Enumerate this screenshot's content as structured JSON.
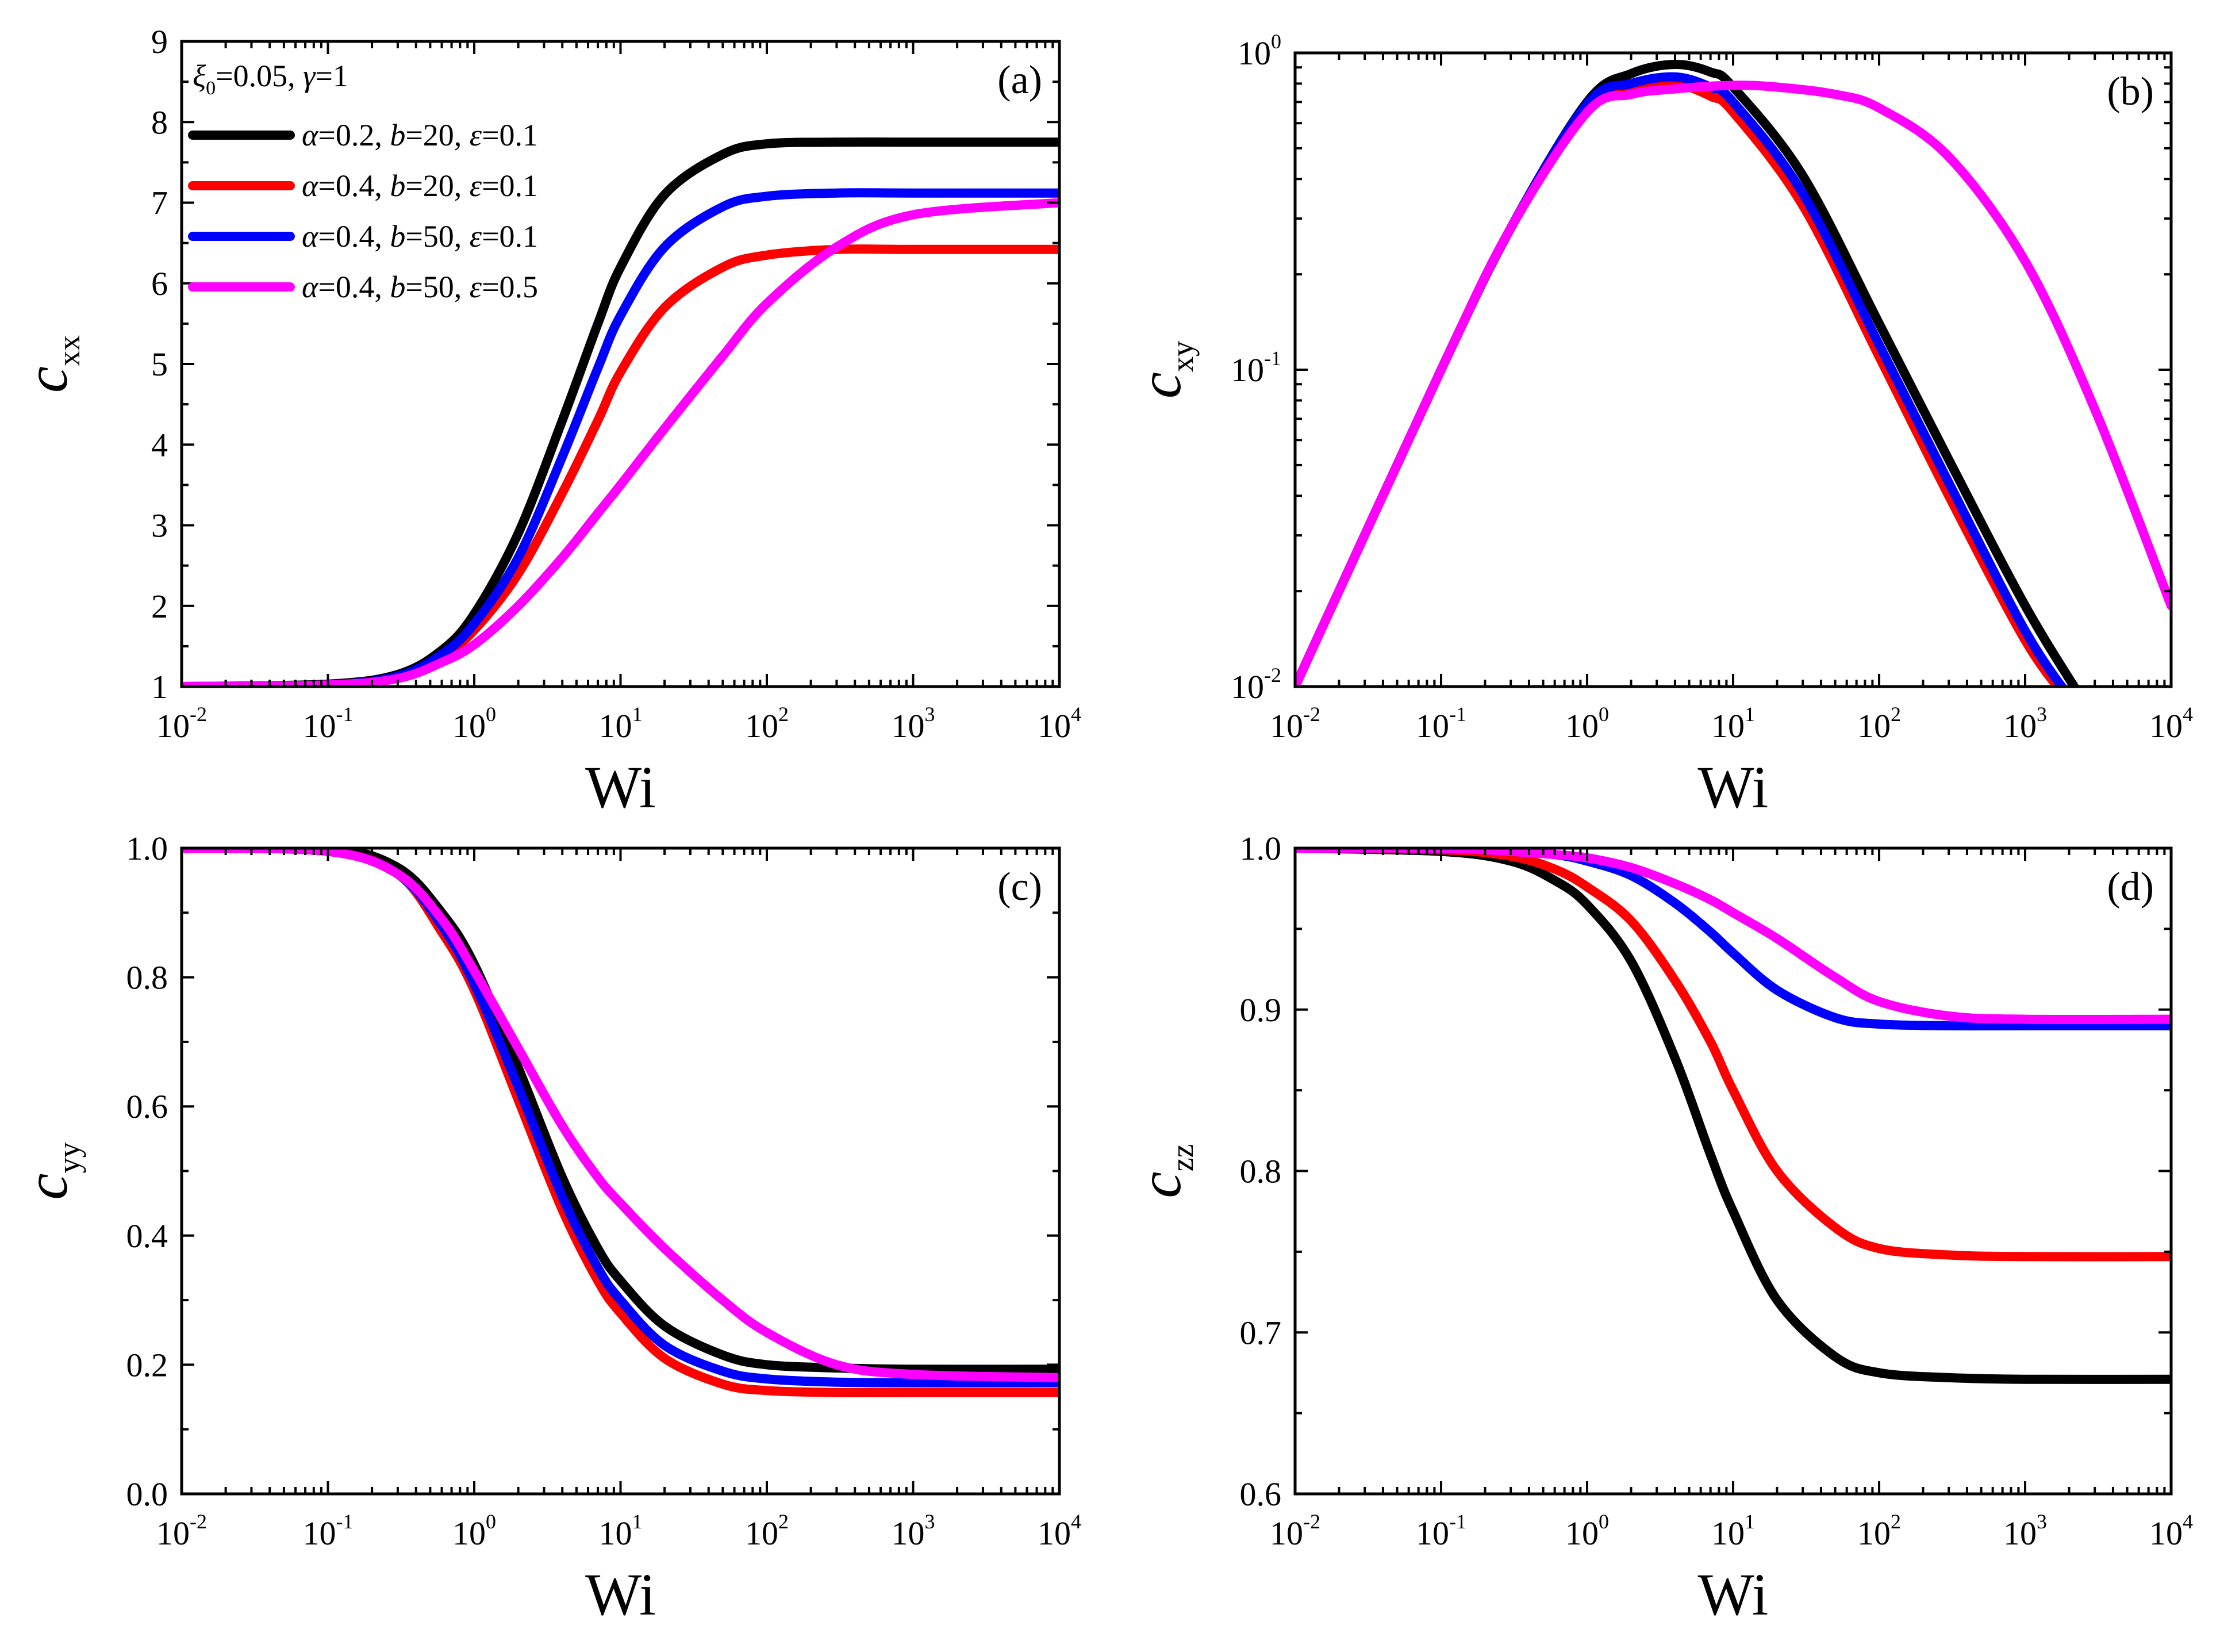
{
  "figure": {
    "legend_header": "ξ₀=0.05, γ=1",
    "legend_header_parts": {
      "xi": "ξ",
      "xi_sub": "0",
      "xi_val": "=0.05, ",
      "gamma": "γ",
      "gamma_val": "=1"
    }
  },
  "chart_data": [
    {
      "id": "a",
      "type": "line",
      "panel_label": "(a)",
      "xlabel": "Wi",
      "ylabel": "c",
      "ylabel_sub": "xx",
      "xscale": "log",
      "yscale": "linear",
      "xlim": [
        0.01,
        10000
      ],
      "ylim": [
        1,
        9
      ],
      "x_ticks": [
        {
          "base": "10",
          "exp": "-2"
        },
        {
          "base": "10",
          "exp": "-1"
        },
        {
          "base": "10",
          "exp": "0"
        },
        {
          "base": "10",
          "exp": "1"
        },
        {
          "base": "10",
          "exp": "2"
        },
        {
          "base": "10",
          "exp": "3"
        },
        {
          "base": "10",
          "exp": "4"
        }
      ],
      "y_ticks": [
        "1",
        "2",
        "3",
        "4",
        "5",
        "6",
        "7",
        "8",
        "9"
      ],
      "legend": [
        {
          "name": "α=0.2, b=20, ε=0.1",
          "parts": [
            "α",
            "=0.2, ",
            "b",
            "=20, ",
            "ε",
            "=0.1"
          ],
          "color": "#000000"
        },
        {
          "name": "α=0.4, b=20, ε=0.1",
          "parts": [
            "α",
            "=0.4, ",
            "b",
            "=20, ",
            "ε",
            "=0.1"
          ],
          "color": "#ff0000"
        },
        {
          "name": "α=0.4, b=50, ε=0.1",
          "parts": [
            "α",
            "=0.4, ",
            "b",
            "=50, ",
            "ε",
            "=0.1"
          ],
          "color": "#0000ff"
        },
        {
          "name": "α=0.4, b=50, ε=0.5",
          "parts": [
            "α",
            "=0.4, ",
            "b",
            "=50, ",
            "ε",
            "=0.5"
          ],
          "color": "#ff00ff"
        }
      ],
      "series": [
        {
          "name": "α=0.2, b=20, ε=0.1",
          "color": "#000000",
          "x": [
            0.01,
            0.1,
            0.3,
            0.6,
            1,
            2,
            4,
            7,
            10,
            20,
            50,
            100,
            300,
            1000,
            10000
          ],
          "y": [
            1.0,
            1.03,
            1.15,
            1.45,
            1.9,
            2.9,
            4.3,
            5.5,
            6.2,
            7.1,
            7.6,
            7.73,
            7.75,
            7.75,
            7.75
          ]
        },
        {
          "name": "α=0.4, b=20, ε=0.1",
          "color": "#ff0000",
          "x": [
            0.01,
            0.1,
            0.3,
            0.6,
            1,
            2,
            4,
            7,
            10,
            20,
            50,
            100,
            300,
            1000,
            10000
          ],
          "y": [
            1.0,
            1.02,
            1.12,
            1.37,
            1.7,
            2.4,
            3.4,
            4.3,
            4.9,
            5.7,
            6.2,
            6.35,
            6.42,
            6.42,
            6.42
          ]
        },
        {
          "name": "α=0.4, b=50, ε=0.1",
          "color": "#0000ff",
          "x": [
            0.01,
            0.1,
            0.3,
            0.6,
            1,
            2,
            4,
            7,
            10,
            20,
            50,
            100,
            300,
            1000,
            10000
          ],
          "y": [
            1.0,
            1.02,
            1.13,
            1.4,
            1.78,
            2.6,
            3.85,
            4.95,
            5.6,
            6.45,
            6.95,
            7.08,
            7.12,
            7.12,
            7.12
          ]
        },
        {
          "name": "α=0.4, b=50, ε=0.5",
          "color": "#ff00ff",
          "x": [
            0.01,
            0.1,
            0.3,
            0.6,
            1,
            2,
            4,
            7,
            10,
            20,
            50,
            100,
            300,
            1000,
            10000
          ],
          "y": [
            1.0,
            1.02,
            1.1,
            1.3,
            1.52,
            2.0,
            2.6,
            3.15,
            3.5,
            4.2,
            5.1,
            5.75,
            6.45,
            6.85,
            7.0
          ]
        }
      ]
    },
    {
      "id": "b",
      "type": "line",
      "panel_label": "(b)",
      "xlabel": "Wi",
      "ylabel": "c",
      "ylabel_sub": "xy",
      "xscale": "log",
      "yscale": "log",
      "xlim": [
        0.01,
        10000
      ],
      "ylim": [
        0.01,
        1
      ],
      "x_ticks": [
        {
          "base": "10",
          "exp": "-2"
        },
        {
          "base": "10",
          "exp": "-1"
        },
        {
          "base": "10",
          "exp": "0"
        },
        {
          "base": "10",
          "exp": "1"
        },
        {
          "base": "10",
          "exp": "2"
        },
        {
          "base": "10",
          "exp": "3"
        },
        {
          "base": "10",
          "exp": "4"
        }
      ],
      "y_ticks": [
        {
          "base": "10",
          "exp": "-2"
        },
        {
          "base": "10",
          "exp": "-1"
        },
        {
          "base": "10",
          "exp": "0"
        }
      ],
      "series": [
        {
          "name": "α=0.2, b=20, ε=0.1",
          "color": "#000000",
          "x": [
            0.01,
            0.1,
            0.3,
            1,
            2,
            4,
            7,
            10,
            30,
            100,
            300,
            1000,
            2500
          ],
          "y": [
            0.01,
            0.1,
            0.28,
            0.7,
            0.86,
            0.92,
            0.87,
            0.78,
            0.41,
            0.14,
            0.052,
            0.018,
            0.009
          ]
        },
        {
          "name": "α=0.4, b=20, ε=0.1",
          "color": "#ff0000",
          "x": [
            0.01,
            0.1,
            0.3,
            1,
            2,
            4,
            7,
            10,
            30,
            100,
            300,
            1000,
            2000
          ],
          "y": [
            0.01,
            0.1,
            0.28,
            0.68,
            0.79,
            0.8,
            0.73,
            0.65,
            0.33,
            0.11,
            0.04,
            0.014,
            0.009
          ]
        },
        {
          "name": "α=0.4, b=50, ε=0.1",
          "color": "#0000ff",
          "x": [
            0.01,
            0.1,
            0.3,
            1,
            2,
            4,
            7,
            10,
            30,
            100,
            300,
            1000,
            2100
          ],
          "y": [
            0.01,
            0.1,
            0.28,
            0.69,
            0.8,
            0.84,
            0.78,
            0.7,
            0.36,
            0.12,
            0.044,
            0.015,
            0.009
          ]
        },
        {
          "name": "α=0.4, b=50, ε=0.5",
          "color": "#ff00ff",
          "x": [
            0.01,
            0.1,
            0.3,
            1,
            2,
            4,
            10,
            20,
            50,
            100,
            300,
            1000,
            3000,
            10000
          ],
          "y": [
            0.01,
            0.1,
            0.28,
            0.65,
            0.74,
            0.77,
            0.79,
            0.78,
            0.74,
            0.67,
            0.47,
            0.22,
            0.075,
            0.018
          ]
        }
      ]
    },
    {
      "id": "c",
      "type": "line",
      "panel_label": "(c)",
      "xlabel": "Wi",
      "ylabel": "c",
      "ylabel_sub": "yy",
      "xscale": "log",
      "yscale": "linear",
      "xlim": [
        0.01,
        10000
      ],
      "ylim": [
        0,
        1
      ],
      "x_ticks": [
        {
          "base": "10",
          "exp": "-2"
        },
        {
          "base": "10",
          "exp": "-1"
        },
        {
          "base": "10",
          "exp": "0"
        },
        {
          "base": "10",
          "exp": "1"
        },
        {
          "base": "10",
          "exp": "2"
        },
        {
          "base": "10",
          "exp": "3"
        },
        {
          "base": "10",
          "exp": "4"
        }
      ],
      "y_ticks": [
        "0.0",
        "0.2",
        "0.4",
        "0.6",
        "0.8",
        "1.0"
      ],
      "series": [
        {
          "name": "α=0.2, b=20, ε=0.1",
          "color": "#000000",
          "x": [
            0.01,
            0.1,
            0.3,
            0.6,
            1,
            2,
            4,
            7,
            10,
            20,
            50,
            100,
            300,
            1000,
            10000
          ],
          "y": [
            1.0,
            1.0,
            0.97,
            0.9,
            0.82,
            0.66,
            0.49,
            0.38,
            0.33,
            0.26,
            0.215,
            0.2,
            0.195,
            0.193,
            0.193
          ]
        },
        {
          "name": "α=0.4, b=20, ε=0.1",
          "color": "#ff0000",
          "x": [
            0.01,
            0.1,
            0.3,
            0.6,
            1,
            2,
            4,
            7,
            10,
            20,
            50,
            100,
            300,
            1000,
            10000
          ],
          "y": [
            1.0,
            0.995,
            0.96,
            0.87,
            0.78,
            0.61,
            0.44,
            0.33,
            0.28,
            0.21,
            0.17,
            0.16,
            0.157,
            0.157,
            0.157
          ]
        },
        {
          "name": "α=0.4, b=50, ε=0.1",
          "color": "#0000ff",
          "x": [
            0.01,
            0.1,
            0.3,
            0.6,
            1,
            2,
            4,
            7,
            10,
            20,
            50,
            100,
            300,
            1000,
            10000
          ],
          "y": [
            1.0,
            0.995,
            0.96,
            0.88,
            0.79,
            0.63,
            0.46,
            0.35,
            0.3,
            0.23,
            0.19,
            0.178,
            0.173,
            0.172,
            0.172
          ]
        },
        {
          "name": "α=0.4, b=50, ε=0.5",
          "color": "#ff00ff",
          "x": [
            0.01,
            0.1,
            0.3,
            0.6,
            1,
            2,
            4,
            7,
            10,
            20,
            50,
            100,
            300,
            1000,
            10000
          ],
          "y": [
            1.0,
            0.995,
            0.96,
            0.89,
            0.81,
            0.69,
            0.57,
            0.49,
            0.45,
            0.38,
            0.3,
            0.25,
            0.2,
            0.185,
            0.18
          ]
        }
      ]
    },
    {
      "id": "d",
      "type": "line",
      "panel_label": "(d)",
      "xlabel": "Wi",
      "ylabel": "c",
      "ylabel_sub": "zz",
      "xscale": "log",
      "yscale": "linear",
      "xlim": [
        0.01,
        10000
      ],
      "ylim": [
        0.6,
        1.0
      ],
      "x_ticks": [
        {
          "base": "10",
          "exp": "-2"
        },
        {
          "base": "10",
          "exp": "-1"
        },
        {
          "base": "10",
          "exp": "0"
        },
        {
          "base": "10",
          "exp": "1"
        },
        {
          "base": "10",
          "exp": "2"
        },
        {
          "base": "10",
          "exp": "3"
        },
        {
          "base": "10",
          "exp": "4"
        }
      ],
      "y_ticks": [
        "0.6",
        "0.7",
        "0.8",
        "0.9",
        "1.0"
      ],
      "series": [
        {
          "name": "α=0.2, b=20, ε=0.1",
          "color": "#000000",
          "x": [
            0.01,
            0.1,
            0.3,
            0.6,
            1,
            2,
            4,
            7,
            10,
            20,
            50,
            100,
            300,
            1000,
            10000
          ],
          "y": [
            1.0,
            0.998,
            0.992,
            0.98,
            0.965,
            0.93,
            0.87,
            0.81,
            0.775,
            0.72,
            0.685,
            0.675,
            0.672,
            0.671,
            0.671
          ]
        },
        {
          "name": "α=0.4, b=20, ε=0.1",
          "color": "#ff0000",
          "x": [
            0.01,
            0.1,
            0.3,
            0.6,
            1,
            2,
            4,
            7,
            10,
            20,
            50,
            100,
            300,
            1000,
            10000
          ],
          "y": [
            1.0,
            0.999,
            0.995,
            0.987,
            0.976,
            0.955,
            0.918,
            0.88,
            0.85,
            0.8,
            0.765,
            0.752,
            0.748,
            0.747,
            0.747
          ]
        },
        {
          "name": "α=0.4, b=50, ε=0.1",
          "color": "#0000ff",
          "x": [
            0.01,
            0.1,
            0.3,
            0.6,
            1,
            2,
            4,
            7,
            10,
            20,
            50,
            100,
            300,
            1000,
            10000
          ],
          "y": [
            1.0,
            1.0,
            0.998,
            0.996,
            0.992,
            0.983,
            0.966,
            0.948,
            0.935,
            0.912,
            0.895,
            0.891,
            0.89,
            0.89,
            0.89
          ]
        },
        {
          "name": "α=0.4, b=50, ε=0.5",
          "color": "#ff00ff",
          "x": [
            0.01,
            0.1,
            0.3,
            0.6,
            1,
            2,
            4,
            7,
            10,
            20,
            50,
            100,
            300,
            1000,
            10000
          ],
          "y": [
            1.0,
            1.0,
            0.998,
            0.996,
            0.994,
            0.988,
            0.978,
            0.968,
            0.96,
            0.944,
            0.92,
            0.905,
            0.896,
            0.894,
            0.894
          ]
        }
      ]
    }
  ]
}
